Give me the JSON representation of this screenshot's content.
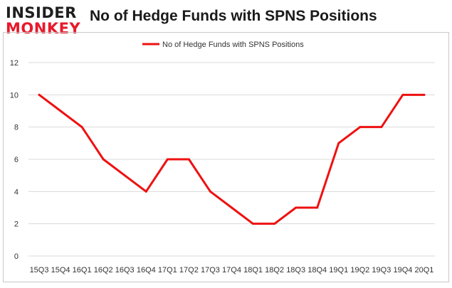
{
  "logo": {
    "line1": "INSIDER",
    "line2": "MONKEY"
  },
  "title": "No of Hedge Funds with SPNS Positions",
  "colors": {
    "line": "#ee1111",
    "grid": "#d9d9d9",
    "logo_red": "#e8182b"
  },
  "chart_data": {
    "type": "line",
    "title": "No of Hedge Funds with SPNS Positions",
    "xlabel": "",
    "ylabel": "",
    "categories": [
      "15Q3",
      "15Q4",
      "16Q1",
      "16Q2",
      "16Q3",
      "16Q4",
      "17Q1",
      "17Q2",
      "17Q3",
      "17Q4",
      "18Q1",
      "18Q2",
      "18Q3",
      "18Q4",
      "19Q1",
      "19Q2",
      "19Q3",
      "19Q4",
      "20Q1"
    ],
    "series": [
      {
        "name": "No of Hedge Funds with SPNS Positions",
        "values": [
          10,
          9,
          8,
          6,
          5,
          4,
          6,
          6,
          4,
          3,
          2,
          2,
          3,
          3,
          7,
          8,
          8,
          10,
          10
        ]
      }
    ],
    "ylim": [
      0,
      12
    ],
    "yticks": [
      0,
      2,
      4,
      6,
      8,
      10,
      12
    ],
    "grid": true,
    "legend": "top-center"
  }
}
